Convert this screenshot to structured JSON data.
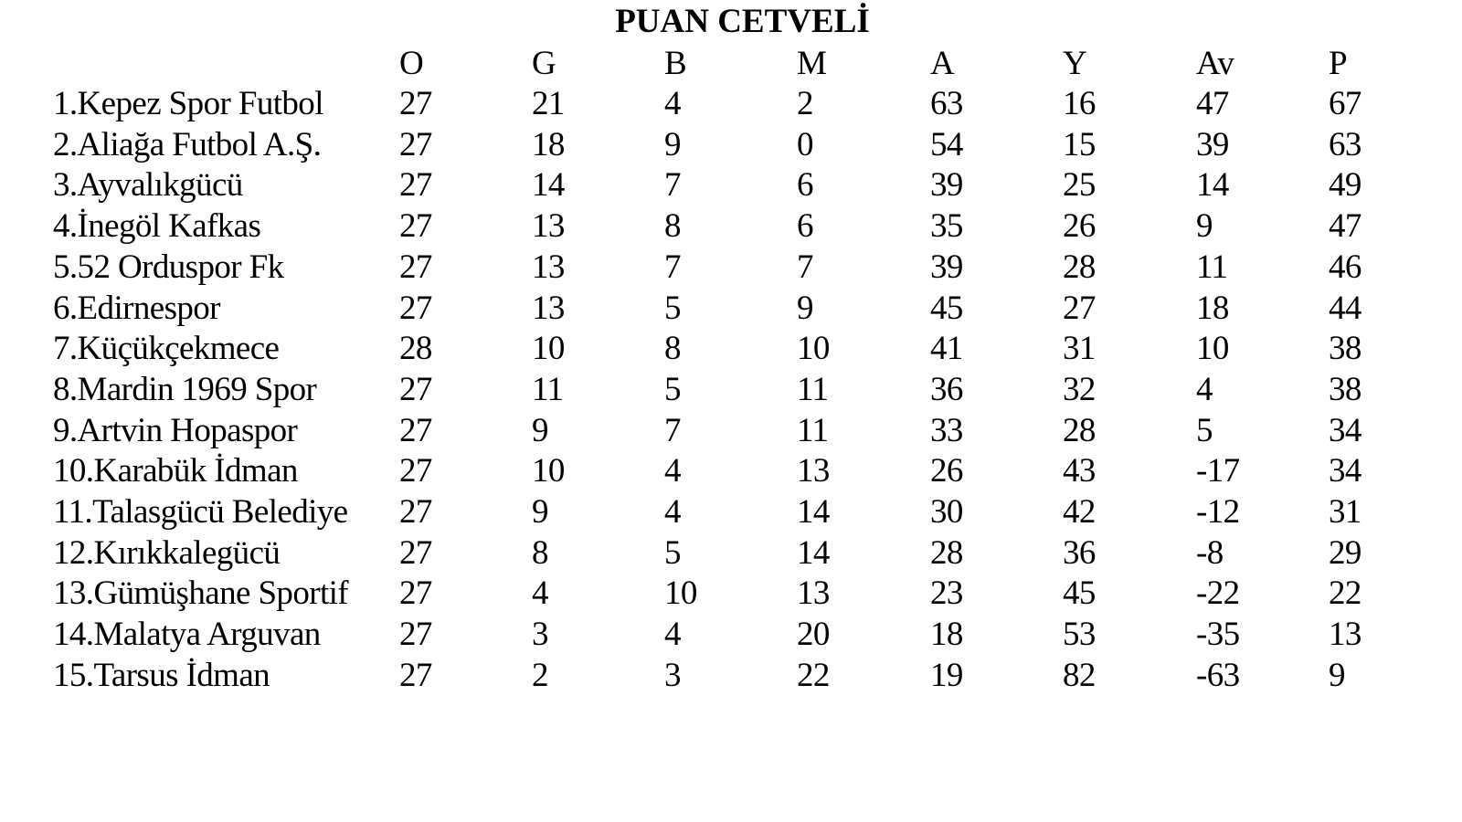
{
  "title": "PUAN CETVELİ",
  "columns": [
    "O",
    "G",
    "B",
    "M",
    "A",
    "Y",
    "Av",
    "P"
  ],
  "rows": [
    {
      "team": "1.Kepez Spor Futbol",
      "values": [
        "27",
        "21",
        "4",
        "2",
        "63",
        "16",
        "47",
        "67"
      ]
    },
    {
      "team": "2.Aliağa Futbol A.Ş.",
      "values": [
        "27",
        "18",
        "9",
        "0",
        "54",
        "15",
        "39",
        "63"
      ]
    },
    {
      "team": "3.Ayvalıkgücü",
      "values": [
        "27",
        "14",
        "7",
        "6",
        "39",
        "25",
        "14",
        "49"
      ]
    },
    {
      "team": "4.İnegöl Kafkas",
      "values": [
        "27",
        "13",
        "8",
        "6",
        "35",
        "26",
        "9",
        "47"
      ]
    },
    {
      "team": "5.52 Orduspor Fk",
      "values": [
        "27",
        "13",
        "7",
        "7",
        "39",
        "28",
        "11",
        "46"
      ]
    },
    {
      "team": "6.Edirnespor",
      "values": [
        "27",
        "13",
        "5",
        "9",
        "45",
        "27",
        "18",
        "44"
      ]
    },
    {
      "team": "7.Küçükçekmece",
      "values": [
        "28",
        "10",
        "8",
        "10",
        "41",
        "31",
        "10",
        "38"
      ]
    },
    {
      "team": "8.Mardin 1969 Spor",
      "values": [
        "27",
        "11",
        "5",
        "11",
        "36",
        "32",
        "4",
        "38"
      ]
    },
    {
      "team": "9.Artvin Hopaspor",
      "values": [
        "27",
        "9",
        "7",
        "11",
        "33",
        "28",
        "5",
        "34"
      ]
    },
    {
      "team": "10.Karabük İdman",
      "values": [
        "27",
        "10",
        "4",
        "13",
        "26",
        "43",
        "-17",
        "34"
      ]
    },
    {
      "team": "11.Talasgücü Belediye",
      "values": [
        "27",
        "9",
        "4",
        "14",
        "30",
        "42",
        "-12",
        "31"
      ]
    },
    {
      "team": "12.Kırıkkalegücü",
      "values": [
        "27",
        "8",
        "5",
        "14",
        "28",
        "36",
        "-8",
        "29"
      ]
    },
    {
      "team": "13.Gümüşhane Sportif",
      "values": [
        "27",
        "4",
        "10",
        "13",
        "23",
        "45",
        "-22",
        "22"
      ]
    },
    {
      "team": "14.Malatya Arguvan",
      "values": [
        "27",
        "3",
        "4",
        "20",
        "18",
        "53",
        "-35",
        "13"
      ]
    },
    {
      "team": "15.Tarsus İdman",
      "values": [
        "27",
        "2",
        "3",
        "22",
        "19",
        "82",
        "-63",
        "9"
      ]
    }
  ]
}
